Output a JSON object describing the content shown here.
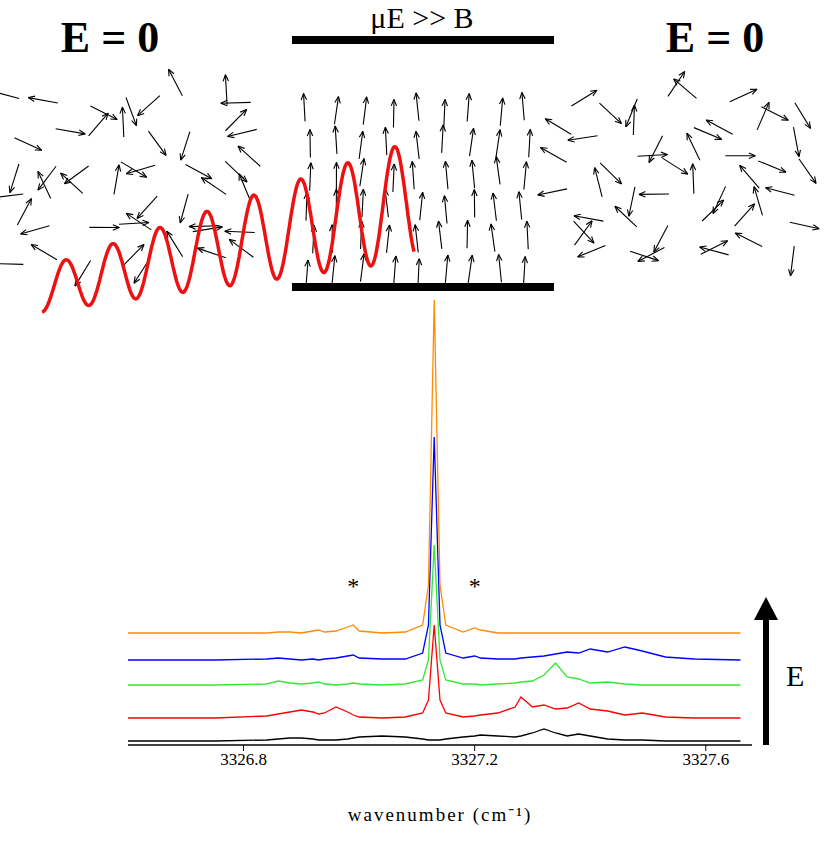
{
  "chart_data": {
    "type": "line",
    "x_label": "wavenumber (cm⁻¹)",
    "xlim": [
      3326.6,
      3327.68
    ],
    "xticks": [
      3326.8,
      3327.2,
      3327.6
    ],
    "ylim": [
      0,
      460
    ],
    "tick_labels": "x",
    "grid": false,
    "side_label": "E",
    "x": [
      3326.6,
      3326.75,
      3326.84,
      3326.86,
      3326.88,
      3326.9,
      3326.92,
      3326.93,
      3326.94,
      3326.96,
      3326.98,
      3326.99,
      3327.0,
      3327.04,
      3327.08,
      3327.11,
      3327.12,
      3327.13,
      3327.14,
      3327.15,
      3327.18,
      3327.2,
      3327.21,
      3327.24,
      3327.27,
      3327.28,
      3327.3,
      3327.32,
      3327.34,
      3327.36,
      3327.38,
      3327.4,
      3327.43,
      3327.46,
      3327.49,
      3327.53,
      3327.58,
      3327.66
    ],
    "series": [
      {
        "color": "#000000",
        "values": [
          4,
          4,
          5,
          6,
          7,
          7,
          6,
          5,
          5,
          5,
          6,
          7,
          8,
          9,
          8,
          6,
          5,
          5,
          5,
          6,
          8,
          9,
          10,
          9,
          8,
          9,
          12,
          16,
          12,
          9,
          11,
          9,
          6,
          5,
          5,
          4,
          4,
          4
        ]
      },
      {
        "color": "#ff0000",
        "values": [
          27,
          27,
          29,
          31,
          33,
          35,
          33,
          31,
          32,
          38,
          33,
          30,
          28,
          27,
          28,
          32,
          45,
          120,
          45,
          32,
          28,
          29,
          30,
          32,
          38,
          48,
          38,
          40,
          36,
          37,
          42,
          36,
          34,
          30,
          32,
          28,
          27,
          27
        ]
      },
      {
        "color": "#33e633",
        "values": [
          60,
          60,
          61,
          64,
          62,
          61,
          62,
          63,
          61,
          60,
          61,
          62,
          61,
          60,
          61,
          65,
          85,
          200,
          85,
          65,
          61,
          61,
          60,
          61,
          62,
          63,
          64,
          70,
          82,
          68,
          66,
          62,
          63,
          61,
          60,
          60,
          60,
          60
        ]
      },
      {
        "color": "#0000ff",
        "values": [
          85,
          85,
          86,
          87,
          86,
          85,
          86,
          85,
          86,
          87,
          89,
          90,
          87,
          86,
          86,
          92,
          120,
          308,
          120,
          92,
          87,
          89,
          87,
          86,
          86,
          87,
          88,
          89,
          91,
          93,
          92,
          96,
          93,
          98,
          94,
          88,
          86,
          85
        ]
      },
      {
        "color": "#ff8c00",
        "values": [
          112,
          112,
          112,
          113,
          113,
          112,
          114,
          115,
          113,
          114,
          118,
          120,
          114,
          112,
          113,
          120,
          160,
          445,
          160,
          120,
          113,
          117,
          115,
          112,
          112,
          112,
          112,
          112,
          112,
          112,
          112,
          112,
          112,
          112,
          112,
          112,
          112,
          112
        ]
      }
    ],
    "annotations": [
      {
        "text": "*",
        "x": 3326.99,
        "y": 160
      },
      {
        "text": "*",
        "x": 3327.2,
        "y": 160
      }
    ]
  },
  "diagram": {
    "left_label": "E = 0",
    "center_label": "μE >> B",
    "right_label": "E = 0"
  }
}
